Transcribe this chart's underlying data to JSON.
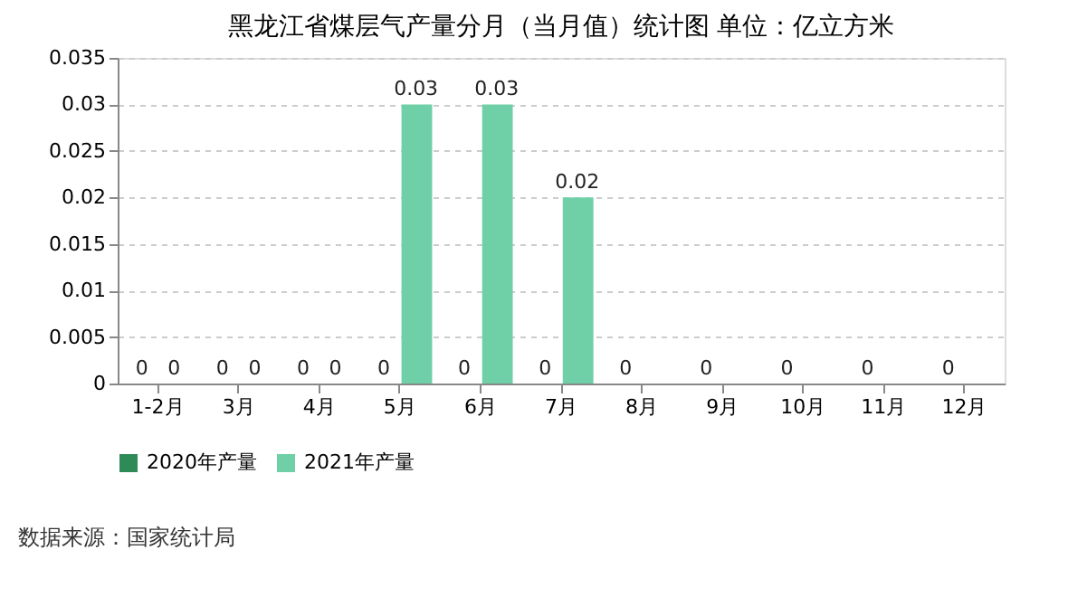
{
  "chart_data": {
    "type": "bar",
    "title": "黑龙江省煤层气产量分月（当月值）统计图 单位：亿立方米",
    "categories": [
      "1-2月",
      "3月",
      "4月",
      "5月",
      "6月",
      "7月",
      "8月",
      "9月",
      "10月",
      "11月",
      "12月"
    ],
    "series": [
      {
        "name": "2020年产量",
        "color": "#2e8b57",
        "values": [
          0,
          0,
          0,
          0,
          0,
          0,
          0,
          0,
          0,
          0,
          0
        ]
      },
      {
        "name": "2021年产量",
        "color": "#6fcfa6",
        "values": [
          0,
          0,
          0,
          0.03,
          0.03,
          0.02,
          null,
          null,
          null,
          null,
          null
        ]
      }
    ],
    "ylim": [
      0,
      0.035
    ],
    "yticks": [
      0,
      0.005,
      0.01,
      0.015,
      0.02,
      0.025,
      0.03,
      0.035
    ],
    "grid": "y",
    "legend": "bottom",
    "data_labels": true,
    "annotations": [
      "数据来源：国家统计局"
    ]
  }
}
